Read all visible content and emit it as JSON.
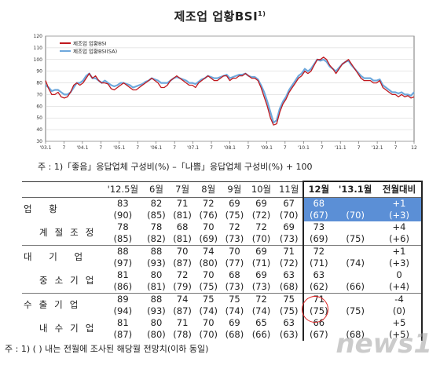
{
  "title": "제조업 업황BSI",
  "title_sup": "1)",
  "chart_note": "주 : 1)「좋음」응답업체 구성비(%) –「나쁨」응답업체 구성비(%) + 100",
  "chart_data": {
    "type": "line",
    "ylim": [
      30,
      120
    ],
    "yticks": [
      30,
      40,
      50,
      60,
      70,
      80,
      90,
      100,
      110,
      120
    ],
    "x_tick_labels": [
      "'03.1",
      "7",
      "'04.1",
      "7",
      "'05.1",
      "7",
      "'06.1",
      "7",
      "'07.1",
      "7",
      "'08.1",
      "7",
      "'09.1",
      "7",
      "'10.1",
      "7",
      "'11.1",
      "7",
      "'12.1",
      "7",
      "12"
    ],
    "legend_position": "top-left",
    "series": [
      {
        "name": "제조업 업황BSI",
        "color": "#c0181e",
        "values": [
          82,
          75,
          70,
          70,
          72,
          68,
          67,
          68,
          72,
          78,
          80,
          78,
          80,
          84,
          88,
          84,
          86,
          82,
          80,
          80,
          79,
          75,
          74,
          76,
          78,
          80,
          78,
          76,
          74,
          74,
          76,
          78,
          80,
          82,
          84,
          82,
          80,
          76,
          76,
          78,
          82,
          84,
          86,
          84,
          82,
          80,
          78,
          78,
          76,
          80,
          82,
          84,
          86,
          84,
          82,
          82,
          84,
          86,
          86,
          82,
          84,
          84,
          86,
          86,
          88,
          86,
          84,
          84,
          82,
          76,
          68,
          60,
          50,
          44,
          45,
          55,
          62,
          66,
          72,
          76,
          80,
          84,
          86,
          90,
          88,
          90,
          95,
          100,
          100,
          102,
          100,
          95,
          92,
          88,
          92,
          96,
          98,
          100,
          96,
          92,
          88,
          84,
          82,
          82,
          82,
          80,
          80,
          82,
          76,
          74,
          72,
          70,
          70,
          68,
          70,
          68,
          69,
          67,
          68
        ]
      },
      {
        "name": "제조업 업황BSI(SA)",
        "color": "#6ea8dc",
        "values": [
          78,
          76,
          73,
          74,
          74,
          72,
          70,
          70,
          72,
          76,
          80,
          80,
          82,
          86,
          88,
          84,
          84,
          82,
          80,
          82,
          80,
          78,
          77,
          78,
          80,
          80,
          79,
          78,
          76,
          77,
          78,
          79,
          81,
          82,
          84,
          83,
          82,
          80,
          80,
          80,
          82,
          84,
          85,
          84,
          83,
          82,
          80,
          80,
          79,
          81,
          83,
          84,
          86,
          85,
          84,
          84,
          85,
          86,
          87,
          84,
          85,
          86,
          87,
          87,
          88,
          86,
          85,
          85,
          83,
          78,
          72,
          64,
          55,
          46,
          48,
          58,
          64,
          68,
          74,
          78,
          82,
          86,
          88,
          92,
          90,
          92,
          96,
          100,
          99,
          100,
          98,
          94,
          92,
          90,
          93,
          96,
          98,
          99,
          95,
          92,
          89,
          86,
          84,
          84,
          84,
          82,
          82,
          83,
          78,
          76,
          74,
          72,
          72,
          71,
          72,
          70,
          70,
          69,
          72
        ]
      }
    ]
  },
  "table": {
    "header": [
      "'12.5월",
      "6월",
      "7월",
      "8월",
      "9월",
      "10월",
      "11월",
      "12월",
      "'13.1월",
      "전월대비"
    ],
    "rows": [
      {
        "label": "업 황",
        "group_start": true,
        "values": [
          "83",
          "82",
          "71",
          "72",
          "69",
          "69",
          "67",
          "68",
          "",
          "+1"
        ],
        "sub": [
          "(90)",
          "(85)",
          "(81)",
          "(76)",
          "(75)",
          "(72)",
          "(70)",
          "(67)",
          "(70)",
          "(+3)"
        ]
      },
      {
        "label": "계절조정",
        "group_start": false,
        "values": [
          "78",
          "78",
          "68",
          "70",
          "72",
          "72",
          "69",
          "73",
          "",
          "+4"
        ],
        "sub": [
          "(85)",
          "(82)",
          "(81)",
          "(69)",
          "(73)",
          "(70)",
          "(73)",
          "(69)",
          "(75)",
          "(+6)"
        ]
      },
      {
        "label": "대 기 업",
        "group_start": true,
        "values": [
          "88",
          "88",
          "70",
          "74",
          "70",
          "69",
          "71",
          "72",
          "",
          "+1"
        ],
        "sub": [
          "(97)",
          "(93)",
          "(87)",
          "(80)",
          "(77)",
          "(71)",
          "(72)",
          "(71)",
          "(74)",
          "(+3)"
        ]
      },
      {
        "label": "중소기업",
        "group_start": false,
        "values": [
          "81",
          "80",
          "72",
          "70",
          "68",
          "69",
          "63",
          "63",
          "",
          "0"
        ],
        "sub": [
          "(86)",
          "(81)",
          "(79)",
          "(75)",
          "(73)",
          "(73)",
          "(68)",
          "(62)",
          "(66)",
          "(+4)"
        ]
      },
      {
        "label": "수출기업",
        "group_start": true,
        "values": [
          "89",
          "88",
          "74",
          "75",
          "75",
          "72",
          "75",
          "71",
          "",
          "-4"
        ],
        "sub": [
          "(94)",
          "(93)",
          "(87)",
          "(74)",
          "(74)",
          "(74)",
          "(75)",
          "(75)",
          "(75)",
          "(0)"
        ]
      },
      {
        "label": "내수기업",
        "group_start": false,
        "values": [
          "81",
          "80",
          "71",
          "70",
          "69",
          "65",
          "63",
          "66",
          "",
          "+5"
        ],
        "sub": [
          "(87)",
          "(80)",
          "(78)",
          "(70)",
          "(68)",
          "(66)",
          "(63)",
          "(67)",
          "(68)",
          "(+5)"
        ]
      }
    ]
  },
  "footnote": "주 : 1) (   ) 내는 전월에 조사된 해당월 전망치(이하 동일)",
  "watermark": "news1"
}
